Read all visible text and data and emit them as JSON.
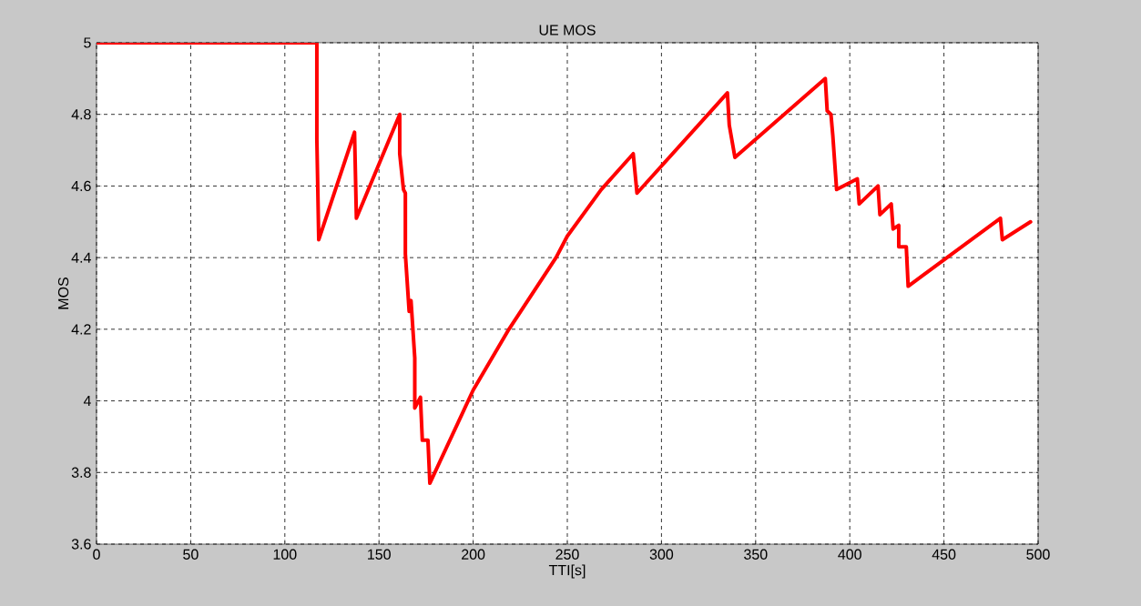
{
  "chart_data": {
    "type": "line",
    "title": "UE MOS",
    "xlabel": "TTI[s]",
    "ylabel": "MOS",
    "xlim": [
      0,
      500
    ],
    "ylim": [
      3.6,
      5
    ],
    "xticks": [
      0,
      50,
      100,
      150,
      200,
      250,
      300,
      350,
      400,
      450,
      500
    ],
    "yticks": [
      3.6,
      3.8,
      4,
      4.2,
      4.4,
      4.6,
      4.8,
      5
    ],
    "grid": true,
    "line_style": "solid",
    "series": [
      {
        "color": "#ff0000",
        "x": [
          0,
          117,
          117,
          118,
          137,
          138,
          161,
          161,
          163,
          164,
          164,
          166,
          167,
          169,
          169,
          172,
          173,
          176,
          177,
          200,
          219,
          244,
          250,
          268,
          285,
          287,
          335,
          336,
          339,
          387,
          388,
          390,
          391,
          393,
          404,
          405,
          415,
          416,
          422,
          423,
          426,
          426,
          430,
          431,
          480,
          481,
          496
        ],
        "values": [
          5,
          5,
          4.73,
          4.45,
          4.75,
          4.51,
          4.8,
          4.69,
          4.59,
          4.58,
          4.41,
          4.25,
          4.28,
          4.12,
          3.98,
          4.01,
          3.89,
          3.89,
          3.77,
          4.03,
          4.2,
          4.4,
          4.46,
          4.59,
          4.69,
          4.58,
          4.86,
          4.77,
          4.68,
          4.9,
          4.81,
          4.8,
          4.74,
          4.59,
          4.62,
          4.55,
          4.6,
          4.52,
          4.55,
          4.48,
          4.49,
          4.43,
          4.43,
          4.32,
          4.51,
          4.45,
          4.5
        ]
      }
    ]
  }
}
